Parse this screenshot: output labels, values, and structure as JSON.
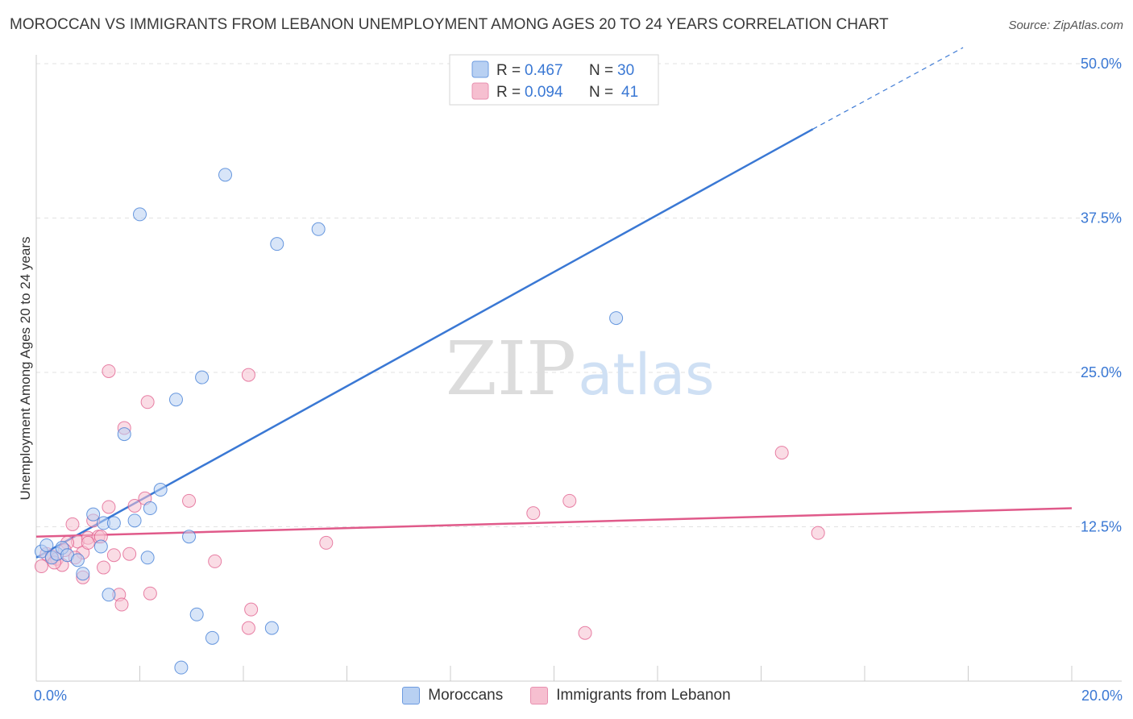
{
  "header": {
    "title": "MOROCCAN VS IMMIGRANTS FROM LEBANON UNEMPLOYMENT AMONG AGES 20 TO 24 YEARS CORRELATION CHART",
    "source": "Source: ZipAtlas.com"
  },
  "watermark": {
    "zip": "ZIP",
    "atlas": "atlas"
  },
  "chart_data": {
    "type": "scatter",
    "title": "MOROCCAN VS IMMIGRANTS FROM LEBANON UNEMPLOYMENT AMONG AGES 20 TO 24 YEARS CORRELATION CHART",
    "xlabel": "",
    "ylabel": "Unemployment Among Ages 20 to 24 years",
    "xlim": [
      0,
      20
    ],
    "ylim": [
      0,
      50
    ],
    "x_tick_labels": [
      "0.0%",
      "20.0%"
    ],
    "y_ticks": [
      12.5,
      25.0,
      37.5,
      50.0
    ],
    "y_tick_labels": [
      "12.5%",
      "25.0%",
      "37.5%",
      "50.0%"
    ],
    "grid": true,
    "colors": {
      "moroccans": "#3a78d4",
      "lebanon": "#e05a8a",
      "moroccans_fill": "#b8d0f2",
      "lebanon_fill": "#f6bfd0",
      "axis_label": "#3a78d4"
    },
    "legend": {
      "rows": [
        {
          "r_label": "R =",
          "r_value": "0.467",
          "n_label": "N =",
          "n_value": "30"
        },
        {
          "r_label": "R =",
          "r_value": "0.094",
          "n_label": "N =",
          "n_value": "41"
        }
      ],
      "bottom": [
        "Moroccans",
        "Immigrants from Lebanon"
      ]
    },
    "series": [
      {
        "name": "Moroccans",
        "points": [
          [
            0.1,
            10.5
          ],
          [
            0.2,
            11.0
          ],
          [
            0.3,
            10.0
          ],
          [
            0.4,
            10.3
          ],
          [
            0.5,
            10.8
          ],
          [
            0.6,
            10.2
          ],
          [
            0.8,
            9.8
          ],
          [
            0.9,
            8.7
          ],
          [
            1.1,
            13.5
          ],
          [
            1.3,
            12.8
          ],
          [
            1.4,
            7.0
          ],
          [
            1.5,
            12.8
          ],
          [
            1.9,
            13.0
          ],
          [
            1.25,
            10.9
          ],
          [
            2.0,
            37.8
          ],
          [
            2.2,
            14.0
          ],
          [
            2.4,
            15.5
          ],
          [
            2.15,
            10.0
          ],
          [
            1.7,
            20.0
          ],
          [
            2.7,
            22.8
          ],
          [
            2.95,
            11.7
          ],
          [
            3.1,
            5.4
          ],
          [
            3.2,
            24.6
          ],
          [
            3.4,
            3.5
          ],
          [
            2.8,
            1.1
          ],
          [
            3.65,
            41.0
          ],
          [
            4.65,
            35.4
          ],
          [
            4.55,
            4.3
          ],
          [
            5.45,
            36.6
          ],
          [
            11.2,
            29.4
          ]
        ]
      },
      {
        "name": "Immigrants from Lebanon",
        "points": [
          [
            0.1,
            9.3
          ],
          [
            0.2,
            10.3
          ],
          [
            0.3,
            10.1
          ],
          [
            0.4,
            9.9
          ],
          [
            0.5,
            9.4
          ],
          [
            0.7,
            12.7
          ],
          [
            0.8,
            11.3
          ],
          [
            0.9,
            10.4
          ],
          [
            1.0,
            11.6
          ],
          [
            1.1,
            13.0
          ],
          [
            1.2,
            11.7
          ],
          [
            1.3,
            9.2
          ],
          [
            1.4,
            14.1
          ],
          [
            1.5,
            10.2
          ],
          [
            1.6,
            7.0
          ],
          [
            1.65,
            6.2
          ],
          [
            1.7,
            20.5
          ],
          [
            1.8,
            10.3
          ],
          [
            1.9,
            14.2
          ],
          [
            2.1,
            14.8
          ],
          [
            2.15,
            22.6
          ],
          [
            2.2,
            7.1
          ],
          [
            1.4,
            25.1
          ],
          [
            0.9,
            8.4
          ],
          [
            1.25,
            11.7
          ],
          [
            1.0,
            11.2
          ],
          [
            0.6,
            11.2
          ],
          [
            2.95,
            14.6
          ],
          [
            3.45,
            9.7
          ],
          [
            4.1,
            24.8
          ],
          [
            4.15,
            5.8
          ],
          [
            4.1,
            4.3
          ],
          [
            5.6,
            11.2
          ],
          [
            9.6,
            13.6
          ],
          [
            10.3,
            14.6
          ],
          [
            10.6,
            3.9
          ],
          [
            14.4,
            18.5
          ],
          [
            15.1,
            12.0
          ],
          [
            0.35,
            9.6
          ],
          [
            0.55,
            10.6
          ],
          [
            0.75,
            10.0
          ]
        ]
      }
    ],
    "trend_lines": [
      {
        "series": "Moroccans",
        "x": [
          0.0,
          15.0
        ],
        "y": [
          10.0,
          44.7
        ],
        "dashed_extension": {
          "x": [
            15.0,
            17.9
          ],
          "y": [
            44.7,
            51.3
          ]
        }
      },
      {
        "series": "Immigrants from Lebanon",
        "x": [
          0.0,
          20.0
        ],
        "y": [
          11.7,
          14.0
        ]
      }
    ]
  }
}
